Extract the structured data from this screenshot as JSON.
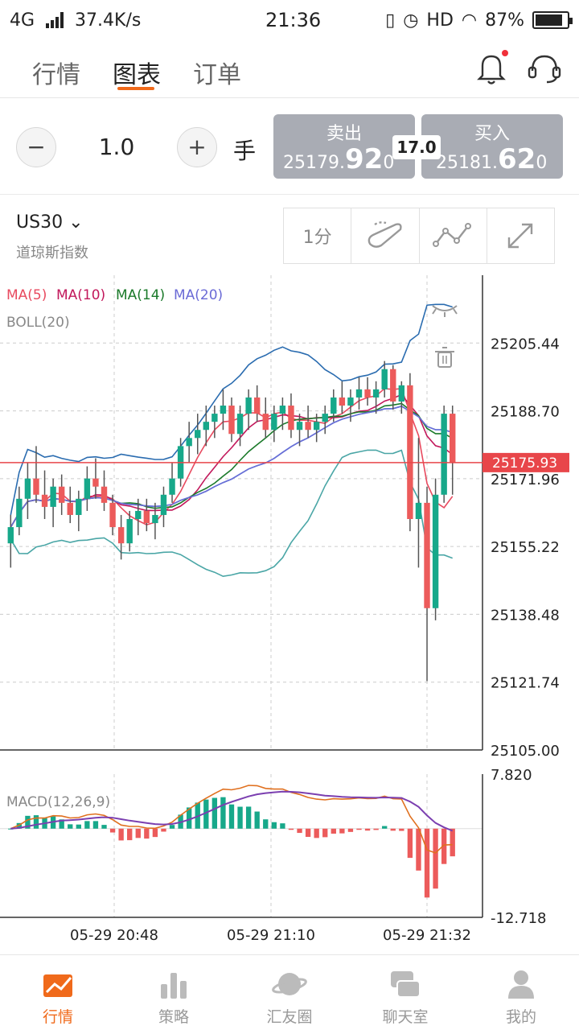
{
  "status": {
    "network": "4G",
    "speed": "37.4K/s",
    "time": "21:36",
    "hd": "HD",
    "battery_pct": "87%",
    "battery_level": 0.87
  },
  "top_tabs": [
    {
      "label": "行情",
      "active": false
    },
    {
      "label": "图表",
      "active": true
    },
    {
      "label": "订单",
      "active": false
    }
  ],
  "trade": {
    "minus": "−",
    "plus": "+",
    "quantity": "1.0",
    "unit": "手",
    "sell_label": "卖出",
    "sell_prefix": "25179.",
    "sell_big": "92",
    "sell_suffix": "0",
    "spread": "17.0",
    "buy_label": "买入",
    "buy_prefix": "25181.",
    "buy_big": "62",
    "buy_suffix": "0"
  },
  "symbol": {
    "name": "US30",
    "description": "道琼斯指数",
    "period": "1分"
  },
  "chart_data": {
    "type": "candlestick",
    "indicators": {
      "ma": [
        {
          "label": "MA(5)",
          "color": "#e84a5f"
        },
        {
          "label": "MA(10)",
          "color": "#c2185b"
        },
        {
          "label": "MA(14)",
          "color": "#1b7a2a"
        },
        {
          "label": "MA(20)",
          "color": "#6b6bd6"
        }
      ],
      "boll": "BOLL(20)"
    },
    "y_ticks": [
      "25205.44",
      "25188.70",
      "25171.96",
      "25155.22",
      "25138.48",
      "25121.74",
      "25105.00"
    ],
    "ylim": [
      25105.0,
      25222.18
    ],
    "current_price": "25175.93",
    "current_value": 25175.93,
    "x_labels": [
      "05-29 20:48",
      "05-29 21:10",
      "05-29 21:32"
    ],
    "candles": [
      [
        25156,
        25163,
        25150,
        25160
      ],
      [
        25160,
        25170,
        25158,
        25167
      ],
      [
        25167,
        25176,
        25162,
        25172
      ],
      [
        25172,
        25180,
        25166,
        25168
      ],
      [
        25168,
        25174,
        25162,
        25165
      ],
      [
        25165,
        25172,
        25160,
        25170
      ],
      [
        25170,
        25173,
        25163,
        25166
      ],
      [
        25166,
        25170,
        25161,
        25163
      ],
      [
        25163,
        25169,
        25159,
        25167
      ],
      [
        25167,
        25175,
        25164,
        25172
      ],
      [
        25172,
        25177,
        25167,
        25170
      ],
      [
        25170,
        25174,
        25164,
        25166
      ],
      [
        25166,
        25168,
        25158,
        25160
      ],
      [
        25160,
        25163,
        25152,
        25156
      ],
      [
        25156,
        25164,
        25154,
        25162
      ],
      [
        25162,
        25167,
        25158,
        25164
      ],
      [
        25164,
        25167,
        25159,
        25161
      ],
      [
        25161,
        25166,
        25157,
        25163
      ],
      [
        25163,
        25170,
        25160,
        25168
      ],
      [
        25168,
        25176,
        25166,
        25172
      ],
      [
        25172,
        25182,
        25170,
        25180
      ],
      [
        25180,
        25186,
        25176,
        25182
      ],
      [
        25182,
        25188,
        25178,
        25184
      ],
      [
        25184,
        25190,
        25180,
        25186
      ],
      [
        25186,
        25190,
        25182,
        25188
      ],
      [
        25188,
        25194,
        25184,
        25190
      ],
      [
        25190,
        25192,
        25181,
        25183
      ],
      [
        25183,
        25190,
        25180,
        25188
      ],
      [
        25188,
        25194,
        25184,
        25192
      ],
      [
        25192,
        25195,
        25186,
        25188
      ],
      [
        25188,
        25192,
        25182,
        25184
      ],
      [
        25184,
        25190,
        25181,
        25188
      ],
      [
        25188,
        25192,
        25184,
        25190
      ],
      [
        25190,
        25193,
        25182,
        25184
      ],
      [
        25184,
        25188,
        25180,
        25186
      ],
      [
        25186,
        25190,
        25182,
        25184
      ],
      [
        25184,
        25188,
        25181,
        25186
      ],
      [
        25186,
        25190,
        25183,
        25188
      ],
      [
        25188,
        25194,
        25186,
        25192
      ],
      [
        25192,
        25196,
        25188,
        25190
      ],
      [
        25190,
        25194,
        25186,
        25192
      ],
      [
        25192,
        25197,
        25189,
        25194
      ],
      [
        25194,
        25197,
        25190,
        25192
      ],
      [
        25192,
        25196,
        25188,
        25194
      ],
      [
        25194,
        25201,
        25192,
        25199
      ],
      [
        25199,
        25200,
        25189,
        25191
      ],
      [
        25191,
        25196,
        25188,
        25195
      ],
      [
        25195,
        25198,
        25159,
        25162
      ],
      [
        25162,
        25182,
        25150,
        25166
      ],
      [
        25166,
        25170,
        25122,
        25140
      ],
      [
        25140,
        25172,
        25137,
        25168
      ],
      [
        25168,
        25190,
        25166,
        25188
      ],
      [
        25188,
        25190,
        25168,
        25176
      ]
    ],
    "macd": {
      "label": "MACD(12,26,9)",
      "y_ticks": [
        "7.820",
        "-12.718"
      ],
      "ylim": [
        -12.718,
        7.82
      ]
    }
  },
  "bottom_nav": [
    {
      "label": "行情",
      "active": true
    },
    {
      "label": "策略",
      "active": false
    },
    {
      "label": "汇友圈",
      "active": false
    },
    {
      "label": "聊天室",
      "active": false
    },
    {
      "label": "我的",
      "active": false
    }
  ]
}
